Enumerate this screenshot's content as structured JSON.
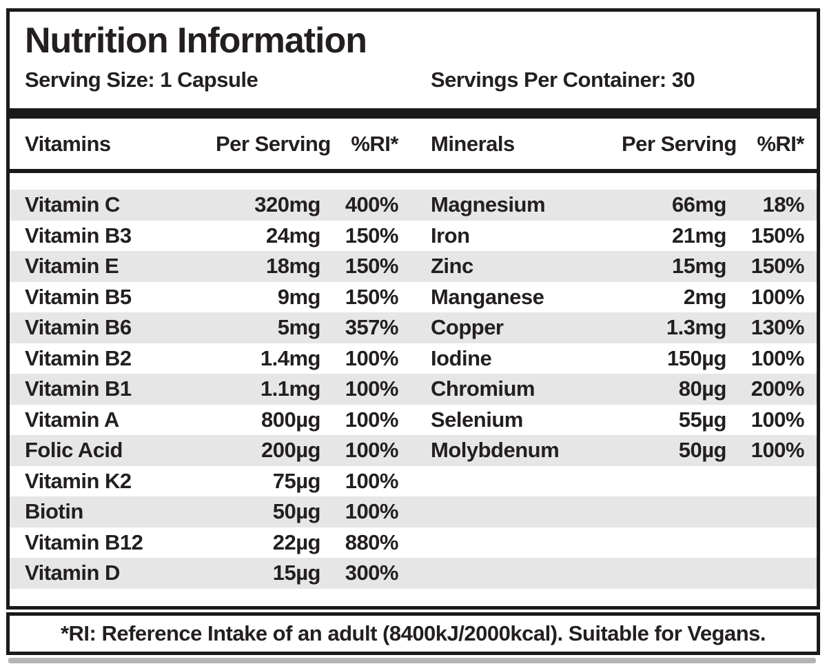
{
  "label": {
    "title": "Nutrition Information",
    "serving_size": "Serving Size: 1 Capsule",
    "servings_per_container": "Servings Per Container: 30",
    "footnote": "*RI: Reference Intake of an adult (8400kJ/2000kcal). Suitable for Vegans."
  },
  "table": {
    "headers": {
      "vitamins": {
        "name": "Vitamins",
        "per_serving": "Per Serving",
        "ri": "%RI*"
      },
      "minerals": {
        "name": "Minerals",
        "per_serving": "Per Serving",
        "ri": "%RI*"
      }
    },
    "rows": [
      {
        "vitamin": {
          "name": "Vitamin C",
          "amount": "320mg",
          "ri": "400%"
        },
        "mineral": {
          "name": "Magnesium",
          "amount": "66mg",
          "ri": "18%"
        }
      },
      {
        "vitamin": {
          "name": "Vitamin B3",
          "amount": "24mg",
          "ri": "150%"
        },
        "mineral": {
          "name": "Iron",
          "amount": "21mg",
          "ri": "150%"
        }
      },
      {
        "vitamin": {
          "name": "Vitamin E",
          "amount": "18mg",
          "ri": "150%"
        },
        "mineral": {
          "name": "Zinc",
          "amount": "15mg",
          "ri": "150%"
        }
      },
      {
        "vitamin": {
          "name": "Vitamin B5",
          "amount": "9mg",
          "ri": "150%"
        },
        "mineral": {
          "name": "Manganese",
          "amount": "2mg",
          "ri": "100%"
        }
      },
      {
        "vitamin": {
          "name": "Vitamin B6",
          "amount": "5mg",
          "ri": "357%"
        },
        "mineral": {
          "name": "Copper",
          "amount": "1.3mg",
          "ri": "130%"
        }
      },
      {
        "vitamin": {
          "name": "Vitamin B2",
          "amount": "1.4mg",
          "ri": "100%"
        },
        "mineral": {
          "name": "Iodine",
          "amount": "150µg",
          "ri": "100%"
        }
      },
      {
        "vitamin": {
          "name": "Vitamin B1",
          "amount": "1.1mg",
          "ri": "100%"
        },
        "mineral": {
          "name": "Chromium",
          "amount": "80µg",
          "ri": "200%"
        }
      },
      {
        "vitamin": {
          "name": "Vitamin A",
          "amount": "800µg",
          "ri": "100%"
        },
        "mineral": {
          "name": "Selenium",
          "amount": "55µg",
          "ri": "100%"
        }
      },
      {
        "vitamin": {
          "name": "Folic Acid",
          "amount": "200µg",
          "ri": "100%"
        },
        "mineral": {
          "name": "Molybdenum",
          "amount": "50µg",
          "ri": "100%"
        }
      },
      {
        "vitamin": {
          "name": "Vitamin K2",
          "amount": "75µg",
          "ri": "100%"
        }
      },
      {
        "vitamin": {
          "name": "Biotin",
          "amount": "50µg",
          "ri": "100%"
        }
      },
      {
        "vitamin": {
          "name": "Vitamin B12",
          "amount": "22µg",
          "ri": "880%"
        }
      },
      {
        "vitamin": {
          "name": "Vitamin D",
          "amount": "15µg",
          "ri": "300%"
        }
      }
    ]
  },
  "colors": {
    "text": "#231f20",
    "border": "#1a1a1a",
    "stripe": "#e6e6e6",
    "background": "#ffffff"
  }
}
